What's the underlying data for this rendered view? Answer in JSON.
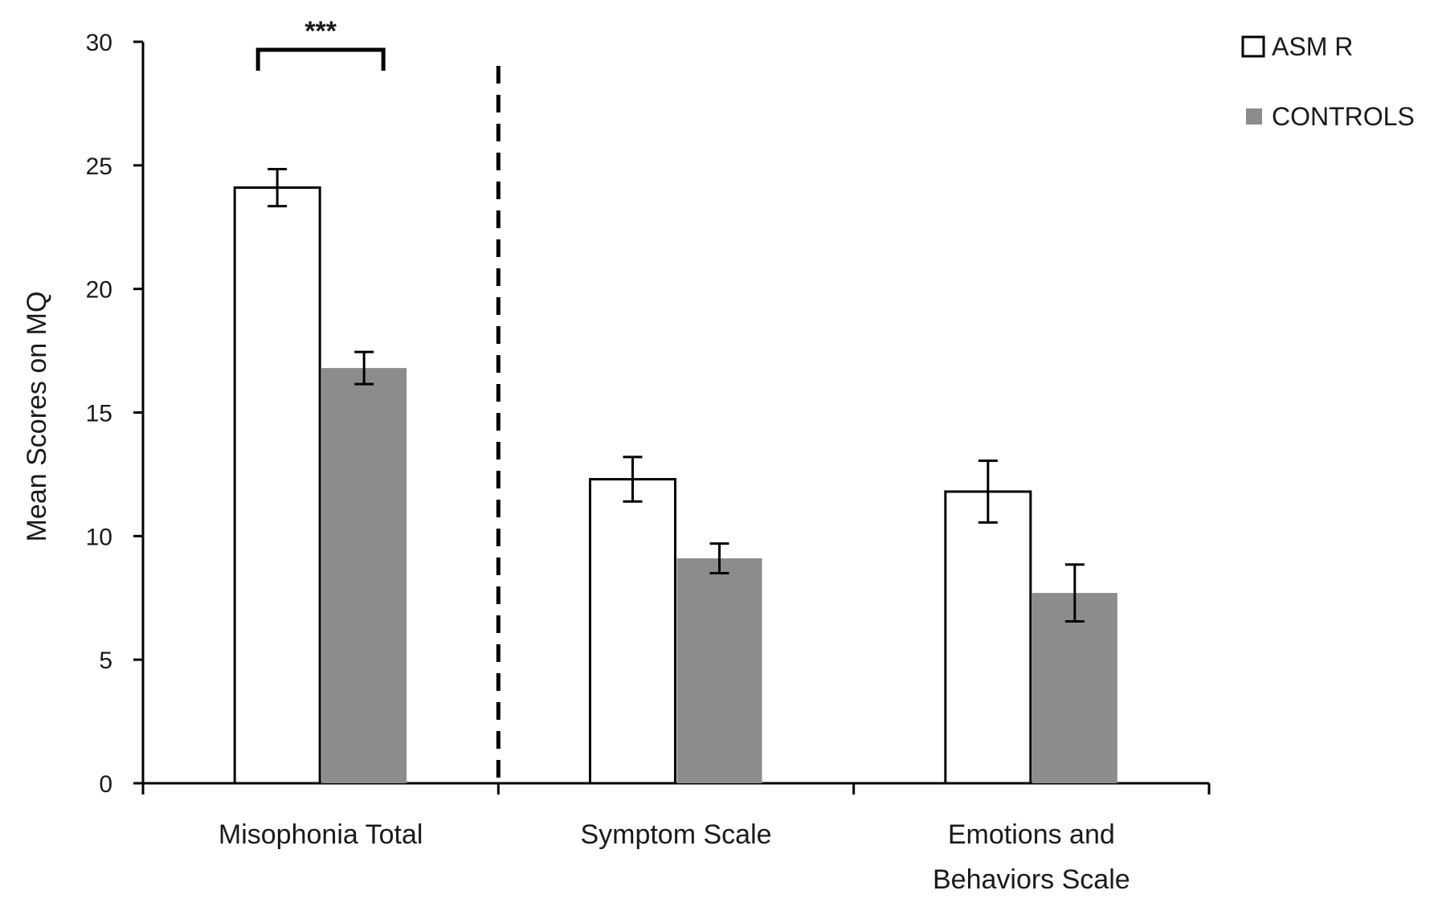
{
  "chart_data": {
    "type": "bar",
    "title": "",
    "xlabel": "",
    "ylabel": "Mean Scores on MQ",
    "ylim": [
      0,
      30
    ],
    "yticks": [
      0,
      5,
      10,
      15,
      20,
      25,
      30
    ],
    "categories": [
      [
        "Misophonia Total"
      ],
      [
        "Symptom Scale"
      ],
      [
        "Emotions and",
        "Behaviors Scale"
      ]
    ],
    "series": [
      {
        "name": "ASMR",
        "color": "#ffffff",
        "stroke": "#000000",
        "values": [
          24.1,
          12.3,
          11.8
        ],
        "errors": [
          0.75,
          0.9,
          1.25
        ]
      },
      {
        "name": "CONTROLS",
        "color": "#8c8c8c",
        "stroke": "none",
        "values": [
          16.8,
          9.1,
          7.7
        ],
        "errors": [
          0.65,
          0.6,
          1.15
        ]
      }
    ],
    "legend": {
      "placement": "top-right",
      "labels": [
        "ASM R",
        "CONTROLS"
      ]
    },
    "annotations": [
      {
        "text": "***",
        "category_index": 0,
        "type": "significance-bracket"
      }
    ],
    "divider_after_category": 0,
    "grid": false
  }
}
